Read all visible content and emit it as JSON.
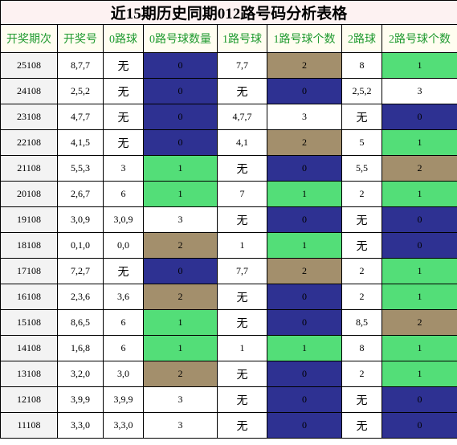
{
  "title": "近15期历史同期012路号码分析表格",
  "headers": [
    "开奖期次",
    "开奖号",
    "0路球",
    "0路号球数量",
    "1路号球",
    "1路号球个数",
    "2路球",
    "2路号球个数"
  ],
  "colors": {
    "blue": "#2e3192",
    "green": "#53de78",
    "tan": "#a38f6c",
    "white": "#ffffff",
    "header_text": "#1f9a2f"
  },
  "rows": [
    {
      "period": "25108",
      "number": "8,7,7",
      "r0": "无",
      "r0_count": "0",
      "r1": "7,7",
      "r1_count": "2",
      "r2": "8",
      "r2_count": "1"
    },
    {
      "period": "24108",
      "number": "2,5,2",
      "r0": "无",
      "r0_count": "0",
      "r1": "无",
      "r1_count": "0",
      "r2": "2,5,2",
      "r2_count": "3"
    },
    {
      "period": "23108",
      "number": "4,7,7",
      "r0": "无",
      "r0_count": "0",
      "r1": "4,7,7",
      "r1_count": "3",
      "r2": "无",
      "r2_count": "0"
    },
    {
      "period": "22108",
      "number": "4,1,5",
      "r0": "无",
      "r0_count": "0",
      "r1": "4,1",
      "r1_count": "2",
      "r2": "5",
      "r2_count": "1"
    },
    {
      "period": "21108",
      "number": "5,5,3",
      "r0": "3",
      "r0_count": "1",
      "r1": "无",
      "r1_count": "0",
      "r2": "5,5",
      "r2_count": "2"
    },
    {
      "period": "20108",
      "number": "2,6,7",
      "r0": "6",
      "r0_count": "1",
      "r1": "7",
      "r1_count": "1",
      "r2": "2",
      "r2_count": "1"
    },
    {
      "period": "19108",
      "number": "3,0,9",
      "r0": "3,0,9",
      "r0_count": "3",
      "r1": "无",
      "r1_count": "0",
      "r2": "无",
      "r2_count": "0"
    },
    {
      "period": "18108",
      "number": "0,1,0",
      "r0": "0,0",
      "r0_count": "2",
      "r1": "1",
      "r1_count": "1",
      "r2": "无",
      "r2_count": "0"
    },
    {
      "period": "17108",
      "number": "7,2,7",
      "r0": "无",
      "r0_count": "0",
      "r1": "7,7",
      "r1_count": "2",
      "r2": "2",
      "r2_count": "1"
    },
    {
      "period": "16108",
      "number": "2,3,6",
      "r0": "3,6",
      "r0_count": "2",
      "r1": "无",
      "r1_count": "0",
      "r2": "2",
      "r2_count": "1"
    },
    {
      "period": "15108",
      "number": "8,6,5",
      "r0": "6",
      "r0_count": "1",
      "r1": "无",
      "r1_count": "0",
      "r2": "8,5",
      "r2_count": "2"
    },
    {
      "period": "14108",
      "number": "1,6,8",
      "r0": "6",
      "r0_count": "1",
      "r1": "1",
      "r1_count": "1",
      "r2": "8",
      "r2_count": "1"
    },
    {
      "period": "13108",
      "number": "3,2,0",
      "r0": "3,0",
      "r0_count": "2",
      "r1": "无",
      "r1_count": "0",
      "r2": "2",
      "r2_count": "1"
    },
    {
      "period": "12108",
      "number": "3,9,9",
      "r0": "3,9,9",
      "r0_count": "3",
      "r1": "无",
      "r1_count": "0",
      "r2": "无",
      "r2_count": "0"
    },
    {
      "period": "11108",
      "number": "3,3,0",
      "r0": "3,3,0",
      "r0_count": "3",
      "r1": "无",
      "r1_count": "0",
      "r2": "无",
      "r2_count": "0"
    }
  ]
}
